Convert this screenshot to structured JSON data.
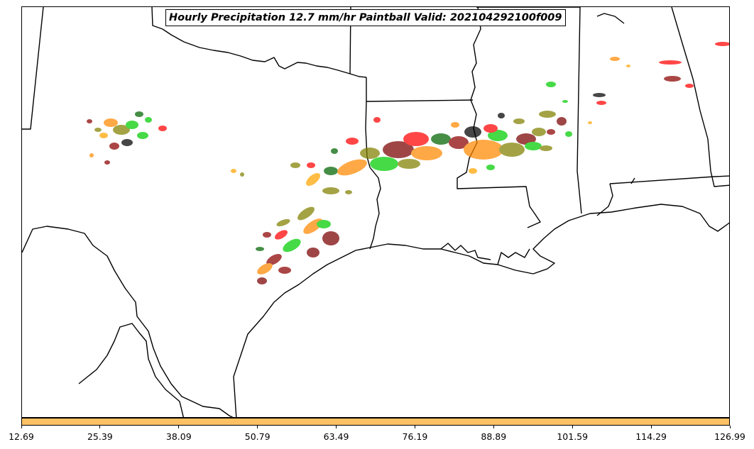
{
  "title": "Hourly Precipitation 12.7 mm/hr Paintball Valid: 202104292100f009",
  "colorbar": {
    "color": "#ffc163",
    "ticks": [
      "12.69",
      "25.39",
      "38.09",
      "50.79",
      "63.49",
      "76.19",
      "88.89",
      "101.59",
      "114.29",
      "126.99"
    ]
  },
  "map": {
    "region": "Southern Plains / Gulf Coast United States",
    "member_colors": [
      "#ff0000",
      "#ff8800",
      "#00cc00",
      "#8b0000",
      "#808000",
      "#000000",
      "#ffa500",
      "#006400",
      "#7a0000"
    ]
  }
}
